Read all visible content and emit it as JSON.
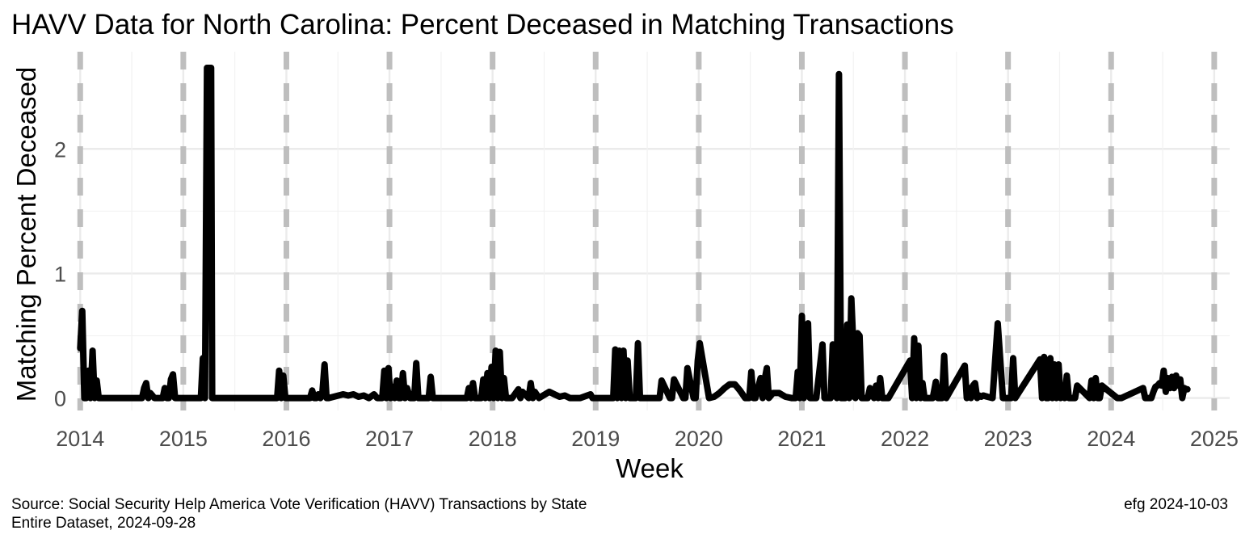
{
  "chart_data": {
    "type": "line",
    "title": "HAVV Data for North Carolina:  Percent Deceased in Matching Transactions",
    "xlabel": "Week",
    "ylabel": "Matching Percent Deceased",
    "xlim": [
      2013.99,
      2025.15
    ],
    "ylim": [
      -0.1,
      2.78
    ],
    "x_ticks": [
      2014,
      2015,
      2016,
      2017,
      2018,
      2019,
      2020,
      2021,
      2022,
      2023,
      2024,
      2025
    ],
    "y_ticks": [
      0,
      1,
      2
    ],
    "grid": true,
    "year_markers": [
      2014,
      2015,
      2016,
      2017,
      2018,
      2019,
      2020,
      2021,
      2022,
      2023,
      2024,
      2025
    ],
    "series": [
      {
        "x": [
          2014.0,
          2014.02,
          2014.04,
          2014.06,
          2014.08,
          2014.1,
          2014.12,
          2014.14,
          2014.16,
          2014.18,
          2014.2,
          2014.22,
          2014.24,
          2014.26,
          2014.28,
          2014.3,
          2014.6,
          2014.62,
          2014.64,
          2014.66,
          2014.68,
          2014.7,
          2014.72,
          2014.74,
          2014.76,
          2014.78,
          2014.8,
          2014.82,
          2014.84,
          2014.86,
          2014.88,
          2014.9,
          2014.92,
          2014.94,
          2015.17,
          2015.19,
          2015.21,
          2015.23,
          2015.24,
          2015.25,
          2015.27,
          2015.28,
          2015.3,
          2015.32,
          2015.91,
          2015.93,
          2015.95,
          2015.97,
          2015.99,
          2016.23,
          2016.25,
          2016.27,
          2016.29,
          2016.31,
          2016.33,
          2016.35,
          2016.37,
          2016.39,
          2016.41,
          2016.55,
          2016.6,
          2016.65,
          2016.7,
          2016.75,
          2016.8,
          2016.85,
          2016.88,
          2016.91,
          2016.93,
          2016.95,
          2016.97,
          2016.99,
          2017.01,
          2017.03,
          2017.05,
          2017.07,
          2017.09,
          2017.11,
          2017.13,
          2017.15,
          2017.17,
          2017.2,
          2017.22,
          2017.24,
          2017.26,
          2017.28,
          2017.3,
          2017.36,
          2017.38,
          2017.4,
          2017.42,
          2017.44,
          2017.75,
          2017.77,
          2017.79,
          2017.81,
          2017.83,
          2017.85,
          2017.87,
          2017.89,
          2017.91,
          2017.93,
          2017.95,
          2017.97,
          2017.99,
          2018.01,
          2018.03,
          2018.05,
          2018.07,
          2018.09,
          2018.11,
          2018.13,
          2018.15,
          2018.17,
          2018.19,
          2018.25,
          2018.27,
          2018.29,
          2018.35,
          2018.37,
          2018.39,
          2018.41,
          2018.45,
          2018.55,
          2018.6,
          2018.65,
          2018.7,
          2018.75,
          2018.85,
          2018.95,
          2018.97,
          2018.99,
          2019.15,
          2019.17,
          2019.19,
          2019.21,
          2019.23,
          2019.25,
          2019.27,
          2019.29,
          2019.31,
          2019.33,
          2019.35,
          2019.37,
          2019.39,
          2019.41,
          2019.43,
          2019.6,
          2019.62,
          2019.64,
          2019.72,
          2019.74,
          2019.76,
          2019.85,
          2019.87,
          2019.89,
          2019.95,
          2019.97,
          2019.99,
          2020.01,
          2020.1,
          2020.15,
          2020.2,
          2020.25,
          2020.3,
          2020.35,
          2020.4,
          2020.45,
          2020.47,
          2020.49,
          2020.51,
          2020.53,
          2020.55,
          2020.6,
          2020.62,
          2020.64,
          2020.66,
          2020.68,
          2020.72,
          2020.78,
          2020.84,
          2020.9,
          2020.92,
          2020.94,
          2020.96,
          2020.98,
          2021.0,
          2021.02,
          2021.04,
          2021.06,
          2021.08,
          2021.1,
          2021.12,
          2021.14,
          2021.2,
          2021.22,
          2021.24,
          2021.26,
          2021.28,
          2021.3,
          2021.34,
          2021.36,
          2021.38,
          2021.4,
          2021.42,
          2021.44,
          2021.46,
          2021.48,
          2021.5,
          2021.52,
          2021.54,
          2021.56,
          2021.58,
          2021.6,
          2021.62,
          2021.64,
          2021.66,
          2021.7,
          2021.72,
          2021.74,
          2021.76,
          2021.78,
          2021.8,
          2021.82,
          2021.84,
          2022.05,
          2022.07,
          2022.09,
          2022.11,
          2022.13,
          2022.15,
          2022.17,
          2022.19,
          2022.21,
          2022.23,
          2022.25,
          2022.27,
          2022.3,
          2022.32,
          2022.34,
          2022.36,
          2022.38,
          2022.4,
          2022.58,
          2022.6,
          2022.62,
          2022.64,
          2022.66,
          2022.68,
          2022.7,
          2022.72,
          2022.74,
          2022.76,
          2022.8,
          2022.85,
          2022.9,
          2022.95,
          2022.99,
          2023.01,
          2023.03,
          2023.05,
          2023.07,
          2023.31,
          2023.33,
          2023.35,
          2023.37,
          2023.39,
          2023.41,
          2023.43,
          2023.45,
          2023.47,
          2023.49,
          2023.51,
          2023.53,
          2023.55,
          2023.57,
          2023.59,
          2023.61,
          2023.63,
          2023.65,
          2023.67,
          2023.79,
          2023.81,
          2023.83,
          2023.85,
          2023.87,
          2023.89,
          2023.91,
          2024.06,
          2024.08,
          2024.1,
          2024.31,
          2024.33,
          2024.35,
          2024.37,
          2024.39,
          2024.41,
          2024.43,
          2024.45,
          2024.47,
          2024.49,
          2024.51,
          2024.53,
          2024.55,
          2024.57,
          2024.59,
          2024.61,
          2024.63,
          2024.65,
          2024.67,
          2024.69,
          2024.71,
          2024.73,
          2024.74
        ],
        "y": [
          0.4,
          0.7,
          0.0,
          0.0,
          0.22,
          0.0,
          0.38,
          0.0,
          0.14,
          0.0,
          0.0,
          0.0,
          0.0,
          0.0,
          0.0,
          0.0,
          0.0,
          0.08,
          0.12,
          0.0,
          0.04,
          0.02,
          0.0,
          0.0,
          0.0,
          0.0,
          0.0,
          0.08,
          0.0,
          0.0,
          0.15,
          0.19,
          0.0,
          0.0,
          0.0,
          0.32,
          0.0,
          2.65,
          2.65,
          2.65,
          2.65,
          0.0,
          0.0,
          0.0,
          0.0,
          0.22,
          0.0,
          0.18,
          0.0,
          0.0,
          0.06,
          0.0,
          0.0,
          0.03,
          0.0,
          0.05,
          0.27,
          0.0,
          0.0,
          0.03,
          0.02,
          0.03,
          0.01,
          0.02,
          0.0,
          0.03,
          0.0,
          0.0,
          0.0,
          0.22,
          0.0,
          0.24,
          0.0,
          0.09,
          0.0,
          0.14,
          0.0,
          0.0,
          0.2,
          0.0,
          0.08,
          0.0,
          0.0,
          0.0,
          0.28,
          0.0,
          0.0,
          0.0,
          0.0,
          0.17,
          0.0,
          0.0,
          0.0,
          0.08,
          0.0,
          0.12,
          0.0,
          0.0,
          0.0,
          0.0,
          0.15,
          0.0,
          0.2,
          0.0,
          0.25,
          0.0,
          0.38,
          0.0,
          0.37,
          0.0,
          0.16,
          0.0,
          0.0,
          0.0,
          0.0,
          0.07,
          0.0,
          0.05,
          0.0,
          0.12,
          0.0,
          0.05,
          0.0,
          0.05,
          0.03,
          0.01,
          0.02,
          0.0,
          0.0,
          0.03,
          0.0,
          0.0,
          0.0,
          0.0,
          0.39,
          0.0,
          0.38,
          0.0,
          0.38,
          0.0,
          0.3,
          0.0,
          0.0,
          0.0,
          0.0,
          0.44,
          0.0,
          0.0,
          0.0,
          0.14,
          0.0,
          0.0,
          0.15,
          0.0,
          0.0,
          0.24,
          0.0,
          0.0,
          0.3,
          0.44,
          0.0,
          0.01,
          0.04,
          0.08,
          0.11,
          0.11,
          0.06,
          0.0,
          0.0,
          0.0,
          0.21,
          0.0,
          0.0,
          0.16,
          0.0,
          0.15,
          0.24,
          0.0,
          0.04,
          0.04,
          0.01,
          0.0,
          0.0,
          0.0,
          0.21,
          0.0,
          0.66,
          0.0,
          0.58,
          0.6,
          0.0,
          0.0,
          0.0,
          0.0,
          0.43,
          0.0,
          0.0,
          0.0,
          0.0,
          0.43,
          0.0,
          2.6,
          0.0,
          0.0,
          0.0,
          0.59,
          0.0,
          0.8,
          0.4,
          0.0,
          0.52,
          0.5,
          0.0,
          0.0,
          0.0,
          0.0,
          0.08,
          0.0,
          0.1,
          0.0,
          0.16,
          0.0,
          0.0,
          0.0,
          0.0,
          0.3,
          0.0,
          0.48,
          0.0,
          0.42,
          0.0,
          0.12,
          0.0,
          0.0,
          0.0,
          0.0,
          0.0,
          0.13,
          0.0,
          0.0,
          0.0,
          0.34,
          0.0,
          0.26,
          0.0,
          0.08,
          0.0,
          0.1,
          0.12,
          0.0,
          0.02,
          0.01,
          0.02,
          0.01,
          0.0,
          0.6,
          0.0,
          0.0,
          0.0,
          0.0,
          0.32,
          0.0,
          0.31,
          0.0,
          0.33,
          0.0,
          0.0,
          0.32,
          0.0,
          0.27,
          0.0,
          0.27,
          0.0,
          0.1,
          0.0,
          0.18,
          0.0,
          0.0,
          0.0,
          0.0,
          0.1,
          0.0,
          0.14,
          0.0,
          0.16,
          0.0,
          0.0,
          0.1,
          0.0,
          0.0,
          0.0,
          0.08,
          0.0,
          0.0,
          0.0,
          0.0,
          0.05,
          0.09,
          0.1,
          0.12,
          0.1,
          0.22,
          0.05,
          0.16,
          0.08,
          0.17,
          0.08,
          0.18,
          0.1,
          0.15,
          0.0,
          0.08,
          0.07,
          0.07
        ]
      }
    ]
  },
  "caption": {
    "source_line1": "Source:  Social Security Help America Vote Verification (HAVV) Transactions by State",
    "source_line2": "Entire Dataset, 2024-09-28",
    "credit": "efg 2024-10-03"
  }
}
